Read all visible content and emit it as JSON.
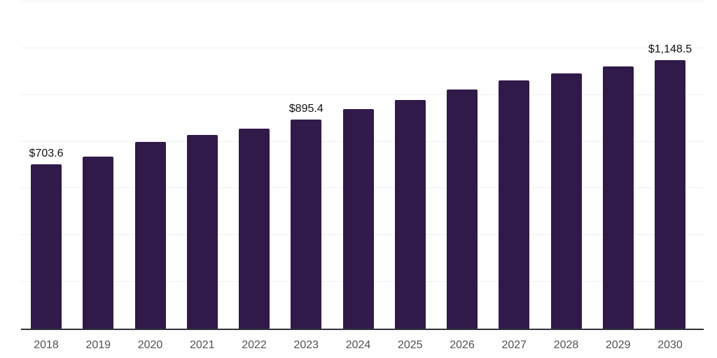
{
  "chart_data": {
    "type": "bar",
    "title": "",
    "xlabel": "",
    "ylabel": "",
    "categories": [
      "2018",
      "2019",
      "2020",
      "2021",
      "2022",
      "2023",
      "2024",
      "2025",
      "2026",
      "2027",
      "2028",
      "2029",
      "2030"
    ],
    "values": [
      703.6,
      736,
      798,
      829,
      857,
      895.4,
      940,
      978,
      1022,
      1062,
      1092,
      1122,
      1148.5
    ],
    "bar_labels": [
      "$703.6",
      null,
      null,
      null,
      null,
      "$895.4",
      null,
      null,
      null,
      null,
      null,
      null,
      "$1,148.5"
    ],
    "ylim": [
      0,
      1400
    ],
    "gridline_step": 200,
    "grid": true,
    "legend": false,
    "colors": {
      "bar": "#301a49",
      "axis_line": "#33333a",
      "gridline": "#f0f0f4",
      "tick_label": "#515156",
      "data_label": "#111111",
      "background": "#ffffff"
    }
  }
}
